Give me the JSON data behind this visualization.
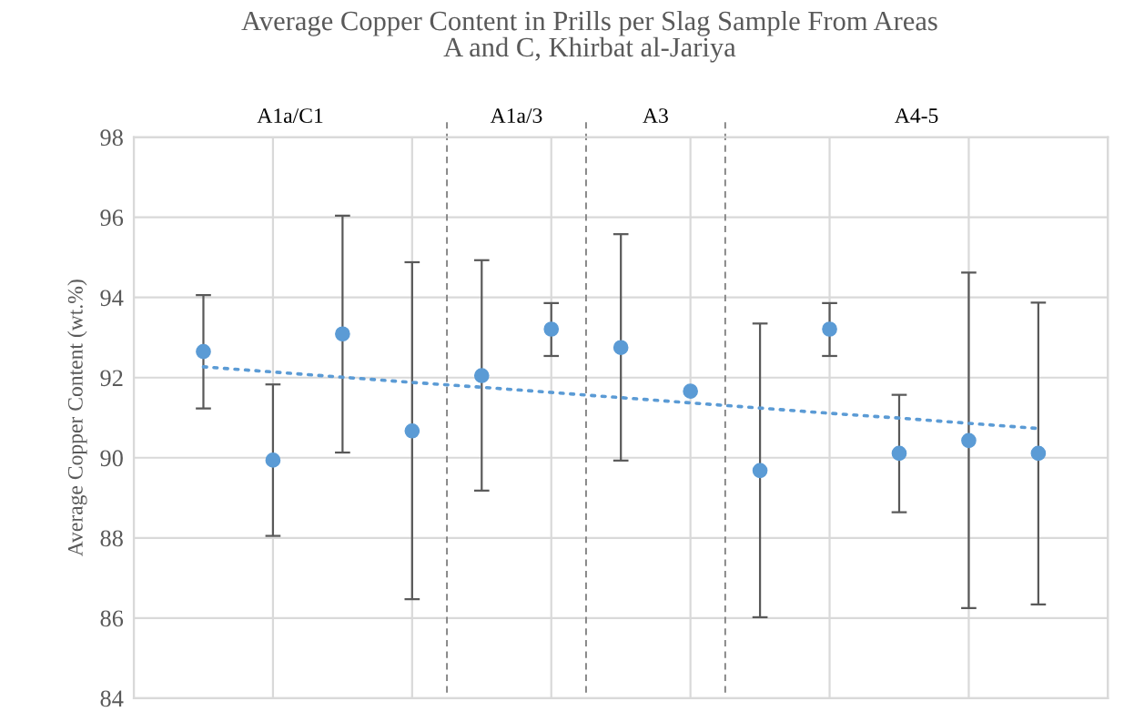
{
  "chart_data": {
    "type": "scatter",
    "title": "Average Copper Content in Prills per Slag Sample From Areas\nA and C, Khirbat al-Jariya",
    "ylabel": "Average Copper Content (wt.%)",
    "categories": [
      null,
      null,
      null,
      null,
      null,
      null,
      null,
      null,
      null,
      null,
      null,
      null,
      null
    ],
    "series": [
      {
        "color": "#5b9bd5",
        "marker": "circle",
        "values": [
          92.65,
          89.94,
          93.09,
          90.67,
          92.05,
          93.21,
          92.75,
          91.66,
          89.68,
          93.21,
          90.11,
          90.43,
          90.11
        ],
        "errors": [
          [
            91.23,
            94.06
          ],
          [
            88.05,
            91.83
          ],
          [
            90.13,
            96.04
          ],
          [
            86.47,
            94.88
          ],
          [
            89.18,
            94.93
          ],
          [
            92.54,
            93.86
          ],
          [
            89.93,
            95.58
          ],
          null,
          [
            86.02,
            93.35
          ],
          [
            92.54,
            93.86
          ],
          [
            88.64,
            91.57
          ],
          [
            86.25,
            94.62
          ],
          [
            86.34,
            93.87
          ]
        ]
      },
      {
        "type": "line",
        "color": "#5b9bd5",
        "line_style": "dotted",
        "values": [
          92.27,
          92.14,
          92.01,
          91.88,
          91.76,
          91.63,
          91.5,
          91.37,
          91.24,
          91.11,
          90.99,
          90.86,
          90.73
        ]
      }
    ],
    "ylim": [
      84,
      98
    ],
    "yticks": [
      84,
      86,
      88,
      90,
      92,
      94,
      96,
      98
    ],
    "grid": true,
    "annotations": [
      "A1a/C1",
      "A1a/3",
      "A3",
      "A4-5"
    ]
  }
}
